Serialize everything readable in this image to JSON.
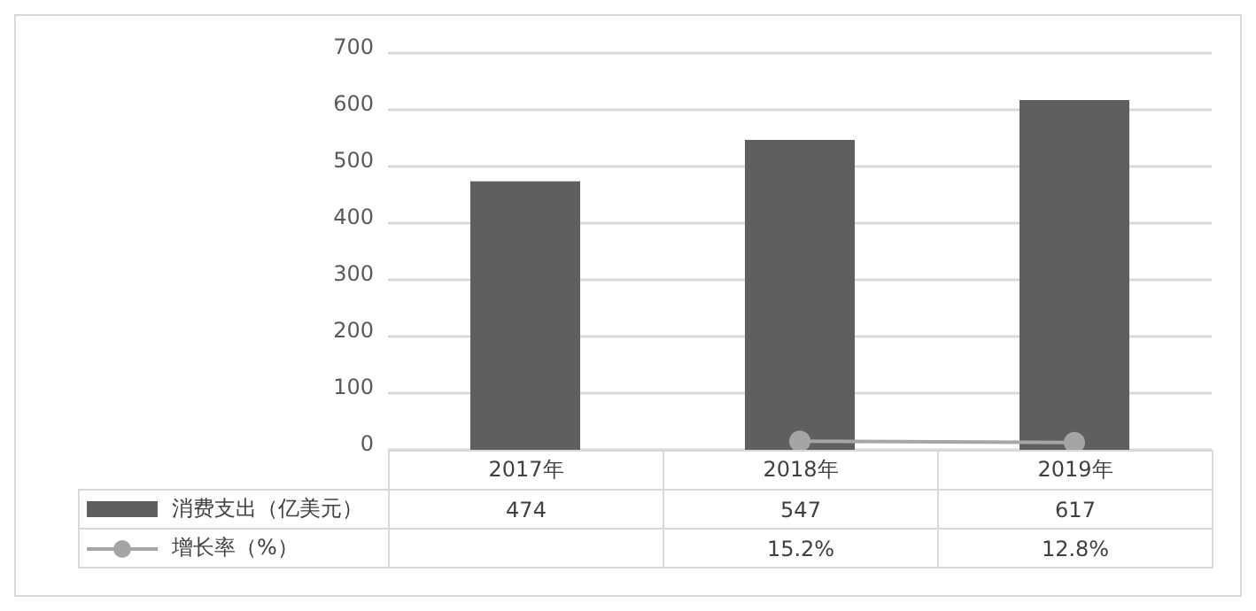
{
  "chart_data": {
    "type": "bar",
    "categories": [
      "2017年",
      "2018年",
      "2019年"
    ],
    "series": [
      {
        "name": "消费支出（亿美元）",
        "color": "#5f5f5f",
        "values": [
          474,
          547,
          617
        ],
        "value_labels": [
          "474",
          "547",
          "617"
        ]
      },
      {
        "name": "增长率（%）",
        "type": "line",
        "color": "#a5a5a5",
        "values": [
          null,
          15.2,
          12.8
        ],
        "value_labels": [
          null,
          "15.2%",
          "12.8%"
        ]
      }
    ],
    "ylim": [
      0,
      700
    ],
    "yticks": [
      0,
      100,
      200,
      300,
      400,
      500,
      600,
      700
    ],
    "grid": "y",
    "legend": "bottom",
    "marker": "circle"
  }
}
